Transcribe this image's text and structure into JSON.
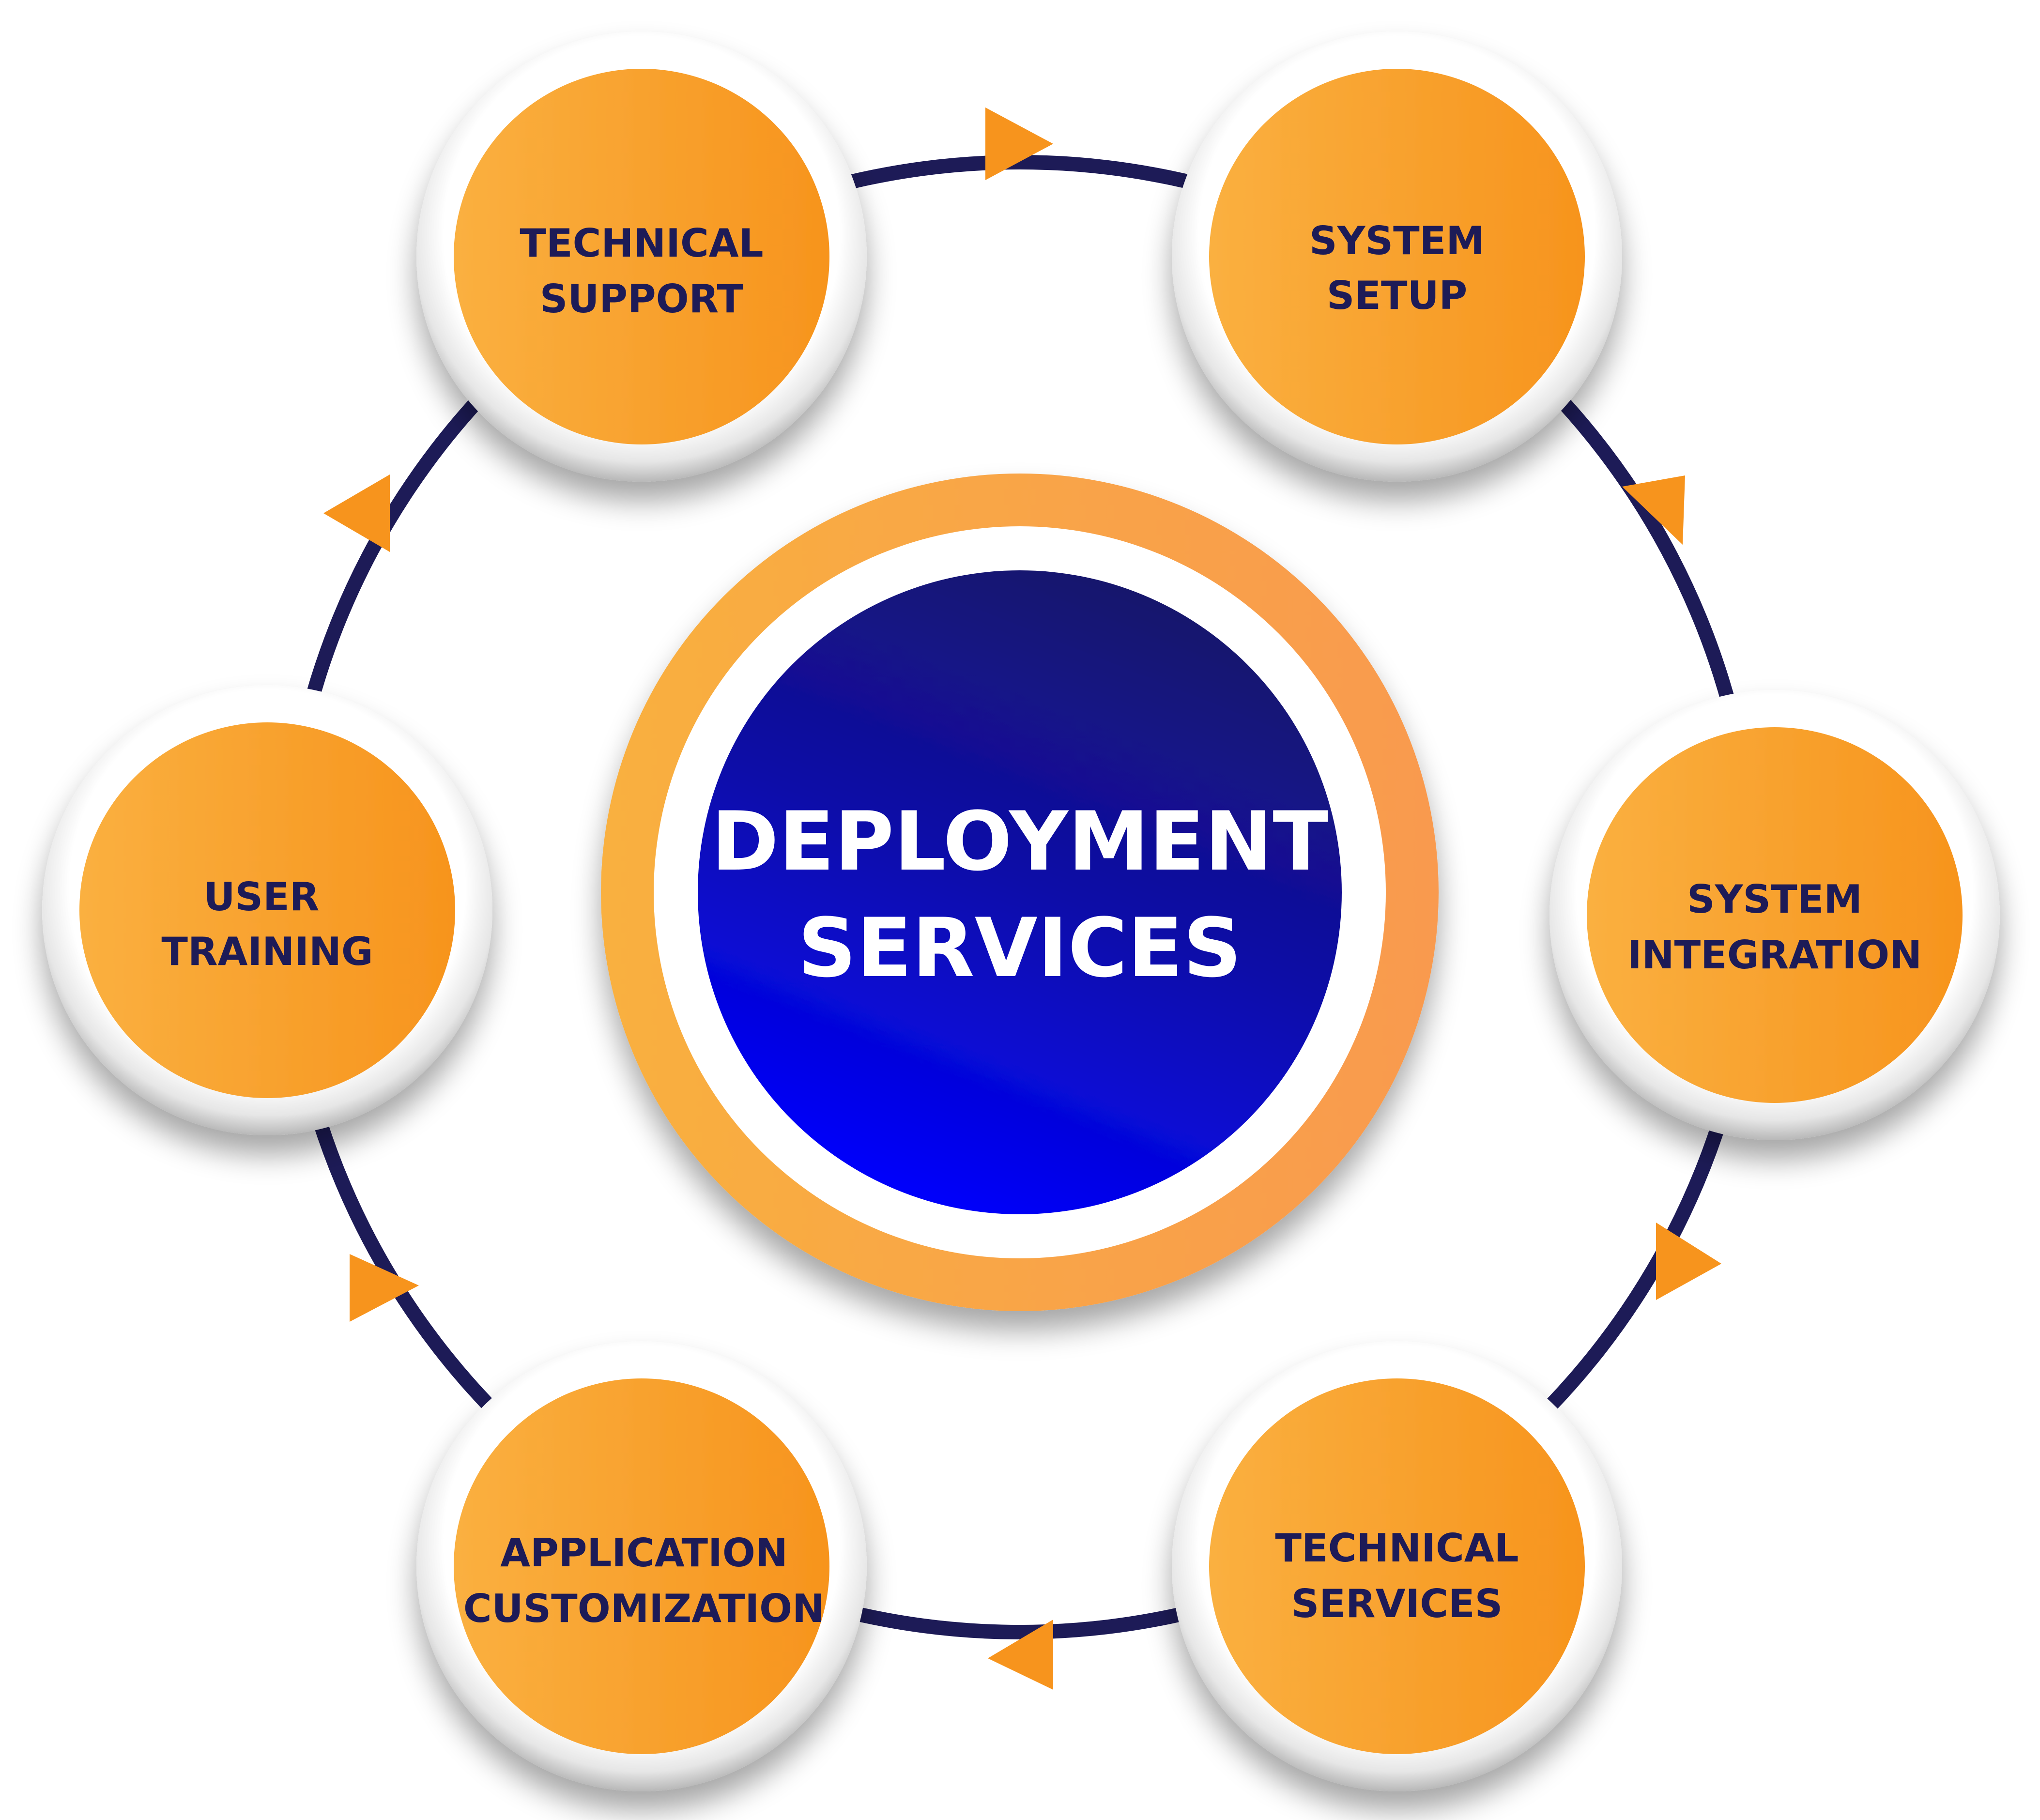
{
  "diagram": {
    "center": {
      "line1": "DEPLOYMENT",
      "line2": "SERVICES"
    },
    "nodes": [
      {
        "id": "technical-support",
        "line1": "TECHNICAL",
        "line2": "SUPPORT"
      },
      {
        "id": "system-setup",
        "line1": "SYSTEM",
        "line2": "SETUP"
      },
      {
        "id": "system-integration",
        "line1": "SYSTEM",
        "line2": "INTEGRATION"
      },
      {
        "id": "technical-services",
        "line1": "TECHNICAL",
        "line2": "SERVICES"
      },
      {
        "id": "application-customization",
        "line1": "APPLICATION",
        "line2": "CUSTOMIZATION"
      },
      {
        "id": "user-training",
        "line1": "USER",
        "line2": "TRAINING"
      }
    ],
    "flow_direction": "clockwise",
    "colors": {
      "ring_line": "#1d1b57",
      "node_orange_light": "#fab040",
      "node_orange_dark": "#f7941d",
      "node_bezel": "#d9d9d9",
      "center_blue_top": "#1a1565",
      "center_blue_bottom": "#0000ff",
      "center_ring_orange": "#f7a23a",
      "label_text": "#1d1b57",
      "center_text": "#ffffff",
      "arrow": "#f7941d"
    }
  }
}
